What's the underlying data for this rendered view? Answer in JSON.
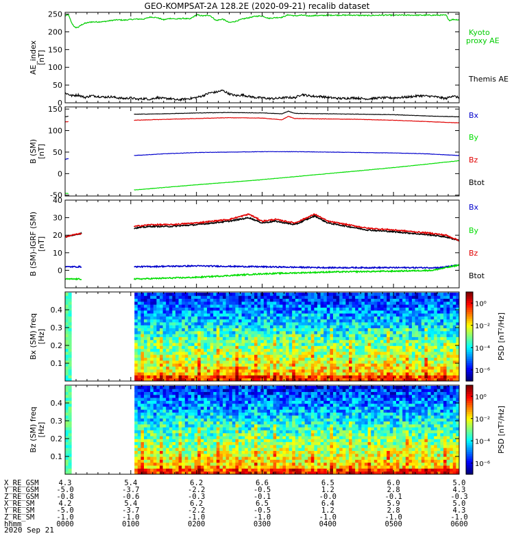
{
  "title": "GEO-KOMPSAT-2A 128.2E (2020-09-21) recalib dataset",
  "colors": {
    "black": "#000000",
    "red": "#e00000",
    "green": "#00dd00",
    "blue": "#0000cc",
    "green_ae": "#00cc00"
  },
  "chart_data": [
    {
      "type": "line",
      "ylabel": "AE_index [nT]",
      "ylim": [
        0,
        255
      ],
      "yticks": [
        0,
        50,
        100,
        150,
        200,
        250
      ],
      "series": [
        {
          "name": "Kyoto proxy AE",
          "color": "#00cc00",
          "x": [
            0,
            0.05,
            0.1,
            0.15,
            0.2,
            0.25,
            0.3,
            0.4,
            0.5,
            0.6,
            0.7,
            0.8,
            0.9,
            1.0,
            1.1,
            1.2,
            1.3,
            1.4,
            1.5,
            1.6,
            1.7,
            1.8,
            1.9,
            2.0,
            2.1,
            2.2,
            2.3,
            2.4,
            2.5,
            2.6,
            2.7,
            2.8,
            2.9,
            3.0,
            3.1,
            3.2,
            3.3,
            3.4,
            3.5,
            3.6,
            3.7,
            3.8,
            3.9,
            4.0,
            4.2,
            4.4,
            4.6,
            4.8,
            5.0,
            5.2,
            5.4,
            5.6,
            5.8,
            5.85,
            5.9,
            6.0
          ],
          "values": [
            245,
            248,
            225,
            212,
            213,
            220,
            224,
            228,
            228,
            229,
            232,
            234,
            233,
            235,
            236,
            236,
            242,
            240,
            234,
            238,
            236,
            238,
            236,
            248,
            245,
            247,
            232,
            236,
            226,
            230,
            236,
            240,
            244,
            245,
            238,
            240,
            241,
            248,
            245,
            247,
            245,
            246,
            246,
            247,
            247,
            247,
            246,
            247,
            247,
            247,
            247,
            247,
            247,
            232,
            235,
            234
          ]
        },
        {
          "name": "Themis AE",
          "color": "#000000",
          "x": [
            0,
            0.1,
            0.2,
            0.3,
            0.4,
            0.5,
            0.6,
            0.7,
            0.8,
            0.9,
            1.0,
            1.1,
            1.2,
            1.3,
            1.4,
            1.5,
            1.6,
            1.7,
            1.8,
            1.9,
            2.0,
            2.1,
            2.2,
            2.3,
            2.4,
            2.5,
            2.6,
            2.7,
            2.8,
            2.9,
            3.0,
            3.1,
            3.2,
            3.3,
            3.4,
            3.5,
            3.6,
            3.7,
            3.8,
            3.9,
            4.0,
            4.2,
            4.4,
            4.6,
            4.8,
            5.0,
            5.2,
            5.4,
            5.6,
            5.8,
            5.9,
            6.0
          ],
          "values": [
            28,
            20,
            22,
            15,
            20,
            18,
            16,
            17,
            14,
            12,
            14,
            10,
            12,
            10,
            15,
            12,
            12,
            8,
            10,
            12,
            15,
            20,
            28,
            30,
            35,
            25,
            20,
            22,
            18,
            15,
            14,
            12,
            12,
            14,
            15,
            14,
            24,
            20,
            18,
            18,
            15,
            12,
            14,
            11,
            14,
            14,
            16,
            20,
            18,
            12,
            20,
            14
          ]
        }
      ],
      "legend": [
        "Kyoto",
        "proxy AE",
        "Themis AE"
      ]
    },
    {
      "type": "line",
      "ylabel": "B (SM) [nT]",
      "ylim": [
        -52,
        155
      ],
      "yticks": [
        -50,
        0,
        50,
        100,
        150
      ],
      "gap": [
        0.05,
        1.05
      ],
      "series": [
        {
          "name": "Btot",
          "color": "#000000",
          "x": [
            0,
            0.05,
            1.05,
            1.5,
            2.0,
            2.5,
            3.0,
            3.3,
            3.4,
            3.5,
            4.0,
            4.5,
            5.0,
            5.5,
            6.0
          ],
          "values": [
            132,
            133,
            138,
            139,
            141,
            142,
            141,
            139,
            145,
            140,
            139,
            138,
            137,
            134,
            132
          ]
        },
        {
          "name": "Bx",
          "color": "#0000cc",
          "x": [
            0,
            0.05,
            1.05,
            1.5,
            2.0,
            2.5,
            3.0,
            3.5,
            4.0,
            4.5,
            5.0,
            5.5,
            6.0
          ],
          "values": [
            33,
            35,
            42,
            46,
            49,
            50,
            51,
            51,
            50,
            49,
            48,
            46,
            42
          ]
        },
        {
          "name": "By",
          "color": "#00dd00",
          "x": [
            0,
            0.05,
            1.05,
            2.0,
            3.0,
            4.0,
            5.0,
            6.0
          ],
          "values": [
            -46,
            -46,
            -38,
            -26,
            -14,
            0,
            14,
            30
          ]
        },
        {
          "name": "Bz",
          "color": "#e00000",
          "x": [
            0,
            0.05,
            1.05,
            1.5,
            2.0,
            2.5,
            3.0,
            3.3,
            3.4,
            3.5,
            4.0,
            4.5,
            5.0,
            5.5,
            6.0
          ],
          "values": [
            120,
            121,
            124,
            126,
            128,
            130,
            129,
            125,
            133,
            128,
            127,
            126,
            124,
            121,
            118
          ]
        }
      ],
      "legend": [
        "Bx",
        "By",
        "Bz",
        "Btot"
      ]
    },
    {
      "type": "line",
      "ylabel": "B (SM)-IGRF (SM) [nT]",
      "ylim": [
        -10,
        40
      ],
      "yticks": [
        0,
        10,
        20,
        30,
        40
      ],
      "gap": [
        0.25,
        1.05
      ],
      "series": [
        {
          "name": "Btot",
          "color": "#000000",
          "x": [
            0,
            0.1,
            0.25,
            1.05,
            1.3,
            1.6,
            2.0,
            2.5,
            2.8,
            3.0,
            3.2,
            3.5,
            3.8,
            4.0,
            4.3,
            4.6,
            5.0,
            5.3,
            5.6,
            5.8,
            6.0
          ],
          "values": [
            19,
            20,
            21,
            24,
            25,
            25,
            26,
            28,
            30,
            27,
            28,
            26,
            31,
            27,
            25,
            23,
            22,
            21,
            20,
            19,
            17
          ]
        },
        {
          "name": "Bz",
          "color": "#e00000",
          "x": [
            0,
            0.1,
            0.25,
            1.05,
            1.3,
            1.6,
            2.0,
            2.5,
            2.8,
            3.0,
            3.2,
            3.5,
            3.8,
            4.0,
            4.3,
            4.6,
            5.0,
            5.3,
            5.6,
            5.8,
            6.0
          ],
          "values": [
            19,
            20,
            21,
            25,
            26,
            26,
            27,
            29,
            32,
            28,
            29,
            27,
            32,
            28,
            26,
            24,
            23,
            22,
            21,
            20,
            17
          ]
        },
        {
          "name": "Bx",
          "color": "#0000cc",
          "x": [
            0,
            0.25,
            1.05,
            2.0,
            3.0,
            4.0,
            5.0,
            5.7,
            6.0
          ],
          "values": [
            2,
            2,
            2,
            2.5,
            2,
            1.5,
            1.5,
            1.5,
            3
          ]
        },
        {
          "name": "By",
          "color": "#00dd00",
          "x": [
            0,
            0.25,
            1.05,
            2.0,
            3.0,
            4.0,
            5.0,
            5.6,
            6.0
          ],
          "values": [
            -5,
            -5,
            -5,
            -4,
            -2,
            -1,
            -0.5,
            0,
            3
          ]
        }
      ],
      "legend": [
        "Bx",
        "By",
        "Bz",
        "Btot"
      ]
    },
    {
      "type": "heatmap",
      "ylabel": "Bx (SM) freq [Hz]",
      "ylim": [
        0,
        0.5
      ],
      "yticks": [
        0.1,
        0.2,
        0.3,
        0.4
      ],
      "gap": [
        0.1,
        1.05
      ],
      "colorbar": {
        "label": "PSD [nT²/Hz]",
        "ticks": [
          "10⁰",
          "10⁻²",
          "10⁻⁴",
          "10⁻⁶"
        ],
        "log_range": [
          -7,
          1
        ]
      },
      "line_freq": 0.165
    },
    {
      "type": "heatmap",
      "ylabel": "Bz (SM) freq [Hz]",
      "ylim": [
        0,
        0.5
      ],
      "yticks": [
        0.1,
        0.2,
        0.3,
        0.4
      ],
      "gap": [
        0.1,
        1.05
      ],
      "colorbar": {
        "label": "PSD [nT²/Hz]",
        "ticks": [
          "10⁰",
          "10⁻²",
          "10⁻⁴",
          "10⁻⁶"
        ],
        "log_range": [
          -7,
          1
        ]
      },
      "line_freq": 0.165
    }
  ],
  "ephemeris": {
    "rows": [
      {
        "label": "X_RE_GSM",
        "values": [
          "4.3",
          "5.4",
          "6.2",
          "6.6",
          "6.5",
          "6.0",
          "5.0"
        ]
      },
      {
        "label": "Y_RE_GSM",
        "values": [
          "-5.0",
          "-3.7",
          "-2.2",
          "-0.5",
          "1.2",
          "2.8",
          "4.3"
        ]
      },
      {
        "label": "Z_RE_GSM",
        "values": [
          "-0.8",
          "-0.6",
          "-0.3",
          "-0.1",
          "-0.0",
          "-0.1",
          "-0.3"
        ]
      },
      {
        "label": "X_RE_SM",
        "values": [
          "4.2",
          "5.4",
          "6.2",
          "6.5",
          "6.4",
          "5.9",
          "5.0"
        ]
      },
      {
        "label": "Y_RE_SM",
        "values": [
          "-5.0",
          "-3.7",
          "-2.2",
          "-0.5",
          "1.2",
          "2.8",
          "4.3"
        ]
      },
      {
        "label": "Z_RE_SM",
        "values": [
          "-1.0",
          "-1.0",
          "-1.0",
          "-1.0",
          "-1.0",
          "-1.0",
          "-1.0"
        ]
      },
      {
        "label": "hhmm",
        "values": [
          "0000",
          "0100",
          "0200",
          "0300",
          "0400",
          "0500",
          "0600"
        ]
      }
    ],
    "date": "2020 Sep 21"
  }
}
